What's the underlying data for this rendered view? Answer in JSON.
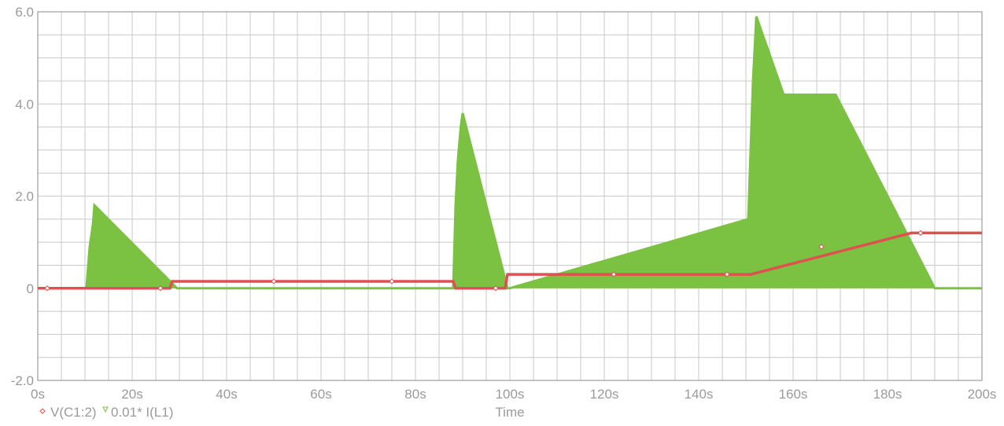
{
  "chart_data": {
    "type": "line",
    "xlabel": "Time",
    "ylabel": "",
    "xlim": [
      0,
      200
    ],
    "ylim": [
      -2.0,
      6.0
    ],
    "x_ticks": [
      0,
      20,
      40,
      60,
      80,
      100,
      120,
      140,
      160,
      180,
      200
    ],
    "x_tick_labels": [
      "0s",
      "20s",
      "40s",
      "60s",
      "80s",
      "100s",
      "120s",
      "140s",
      "160s",
      "180s",
      "200s"
    ],
    "y_ticks": [
      -2,
      0,
      2,
      4,
      6
    ],
    "y_tick_labels": [
      "-2.0",
      "0",
      "2.0",
      "4.0",
      "6.0"
    ],
    "grid": true,
    "legend_position": "bottom-left",
    "series": [
      {
        "name": "V(C1:2)",
        "color": "#e05050",
        "marker": "diamond",
        "x": [
          0,
          28,
          28.5,
          88,
          88.5,
          99,
          99.5,
          150,
          151,
          185,
          186,
          200
        ],
        "y": [
          0,
          0,
          0.15,
          0.15,
          0,
          0,
          0.3,
          0.3,
          0.3,
          1.2,
          1.2,
          1.2
        ]
      },
      {
        "name": "0.01* I(L1)",
        "color": "#7bc142",
        "marker": "triangle",
        "x": [
          0,
          10.3,
          11,
          11.7,
          12,
          29.5,
          30,
          88,
          88.5,
          89,
          89.6,
          90,
          99.5,
          100,
          150.5,
          151,
          151.5,
          152,
          152.2,
          158,
          169,
          190,
          191,
          200
        ],
        "y": [
          0,
          0,
          0.9,
          1.4,
          1.8,
          0,
          0,
          0,
          1.8,
          2.8,
          3.5,
          3.8,
          0,
          0,
          1.5,
          3.0,
          4.5,
          5.5,
          5.9,
          4.2,
          4.2,
          0,
          0,
          0
        ]
      }
    ],
    "annotations": []
  }
}
